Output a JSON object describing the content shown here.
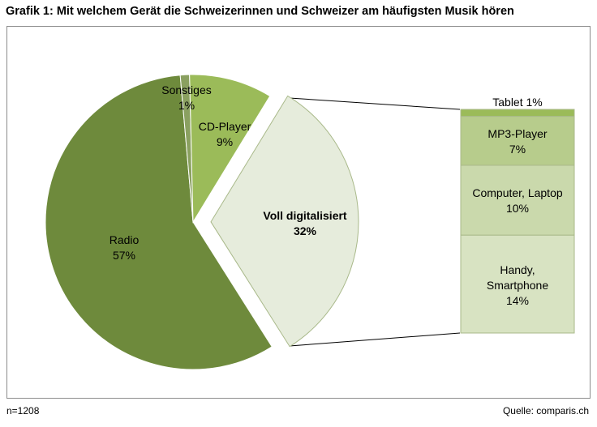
{
  "title": "Grafik 1: Mit welchem Gerät die Schweizerinnen und Schweizer am häufigsten Musik hören",
  "note": "n=1208",
  "source": "Quelle: comparis.ch",
  "colors": {
    "radio": "#6e8a3c",
    "sonstiges": "#8aa060",
    "cd_player": "#9bbb59",
    "digital": "#e6ecdc",
    "tablet": "#9bbb59",
    "mp3": "#b7cc8c",
    "computer": "#cad9ac",
    "handy": "#d8e3c2",
    "border": "#ffffff",
    "box_border": "#a9b98a"
  },
  "chart_data": {
    "type": "pie",
    "title": "Grafik 1: Mit welchem Gerät die Schweizerinnen und Schweizer am häufigsten Musik hören",
    "slices": [
      {
        "label": "Radio",
        "value": 57,
        "display": "57%"
      },
      {
        "label": "Voll digitalisiert",
        "value": 32,
        "display": "32%",
        "exploded": true
      },
      {
        "label": "CD-Player",
        "value": 9,
        "display": "9%"
      },
      {
        "label": "Sonstiges",
        "value": 1,
        "display": "1%"
      }
    ],
    "breakdown": {
      "parent": "Voll digitalisiert",
      "items": [
        {
          "label": "Tablet",
          "value": 1,
          "display": "Tablet 1%"
        },
        {
          "label": "MP3-Player",
          "value": 7,
          "display": "7%"
        },
        {
          "label": "Computer, Laptop",
          "value": 10,
          "display": "10%"
        },
        {
          "label": "Handy, Smartphone",
          "value": 14,
          "display": "14%"
        }
      ]
    },
    "legend": "none"
  }
}
